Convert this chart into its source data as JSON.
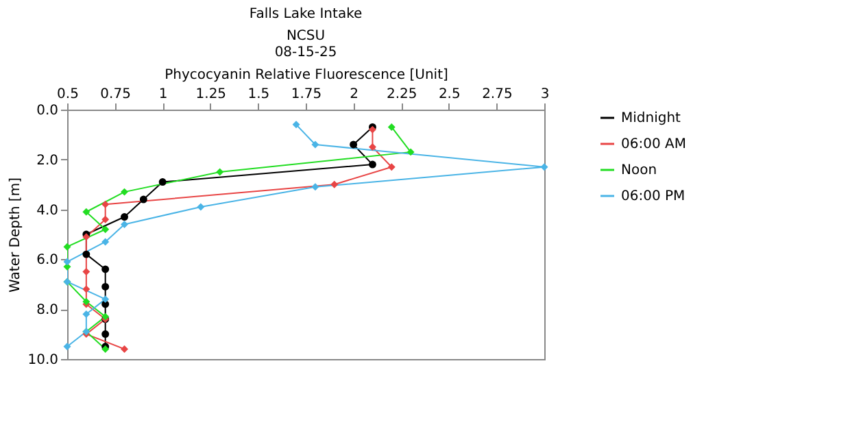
{
  "chart_data": {
    "type": "line",
    "title": "Falls Lake Intake",
    "subtitle": "NCSU",
    "annotations": [
      "08-15-25"
    ],
    "xlabel": "Phycocyanin Relative Fluorescence [Unit]",
    "ylabel": "Water Depth [m]",
    "xlim": [
      0.5,
      3
    ],
    "xticks": [
      0.5,
      0.75,
      1,
      1.25,
      1.5,
      1.75,
      2,
      2.25,
      2.5,
      2.75,
      3
    ],
    "ylim": [
      10,
      0
    ],
    "yticks": [
      {
        "value": 0,
        "label": "0.0"
      },
      {
        "value": 2,
        "label": "2.0"
      },
      {
        "value": 4,
        "label": "4.0"
      },
      {
        "value": 6,
        "label": "6.0"
      },
      {
        "value": 8,
        "label": "8.0"
      },
      {
        "value": 10,
        "label": "10.0"
      }
    ],
    "grid": false,
    "legend": "top right",
    "line_style": "solid",
    "series": [
      {
        "name": "Midnight",
        "color": "#000000",
        "marker": "circle",
        "x": [
          2.1,
          2.0,
          2.1,
          1.0,
          0.9,
          0.8,
          0.6,
          0.6,
          0.7,
          0.7,
          0.7,
          0.7,
          0.7,
          0.7
        ],
        "values": [
          0.7,
          1.4,
          2.2,
          2.9,
          3.6,
          4.3,
          5.0,
          5.8,
          6.4,
          7.1,
          7.8,
          8.4,
          9.0,
          9.5
        ]
      },
      {
        "name": "06:00 AM",
        "color": "#e84545",
        "marker": "diamond",
        "x": [
          2.1,
          2.1,
          2.2,
          1.9,
          0.7,
          0.7,
          0.6,
          0.6,
          0.6,
          0.6,
          0.7,
          0.6,
          0.8
        ],
        "values": [
          0.8,
          1.5,
          2.3,
          3.0,
          3.8,
          4.4,
          5.1,
          6.5,
          7.2,
          7.8,
          8.4,
          9.0,
          9.6
        ]
      },
      {
        "name": "Noon",
        "color": "#22dd22",
        "marker": "diamond",
        "x": [
          2.2,
          2.3,
          1.3,
          0.8,
          0.6,
          0.7,
          0.5,
          0.5,
          0.5,
          0.6,
          0.7,
          0.6,
          0.7
        ],
        "values": [
          0.7,
          1.7,
          2.5,
          3.3,
          4.1,
          4.8,
          5.5,
          6.3,
          6.9,
          7.7,
          8.3,
          8.9,
          9.6
        ]
      },
      {
        "name": "06:00 PM",
        "color": "#4ab4e6",
        "marker": "diamond",
        "x": [
          1.7,
          1.8,
          3.0,
          1.8,
          1.2,
          0.8,
          0.7,
          0.5,
          0.5,
          0.7,
          0.6,
          0.6,
          0.5
        ],
        "values": [
          0.6,
          1.4,
          2.3,
          3.1,
          3.9,
          4.6,
          5.3,
          6.1,
          6.9,
          7.6,
          8.2,
          8.9,
          9.5
        ]
      }
    ]
  }
}
